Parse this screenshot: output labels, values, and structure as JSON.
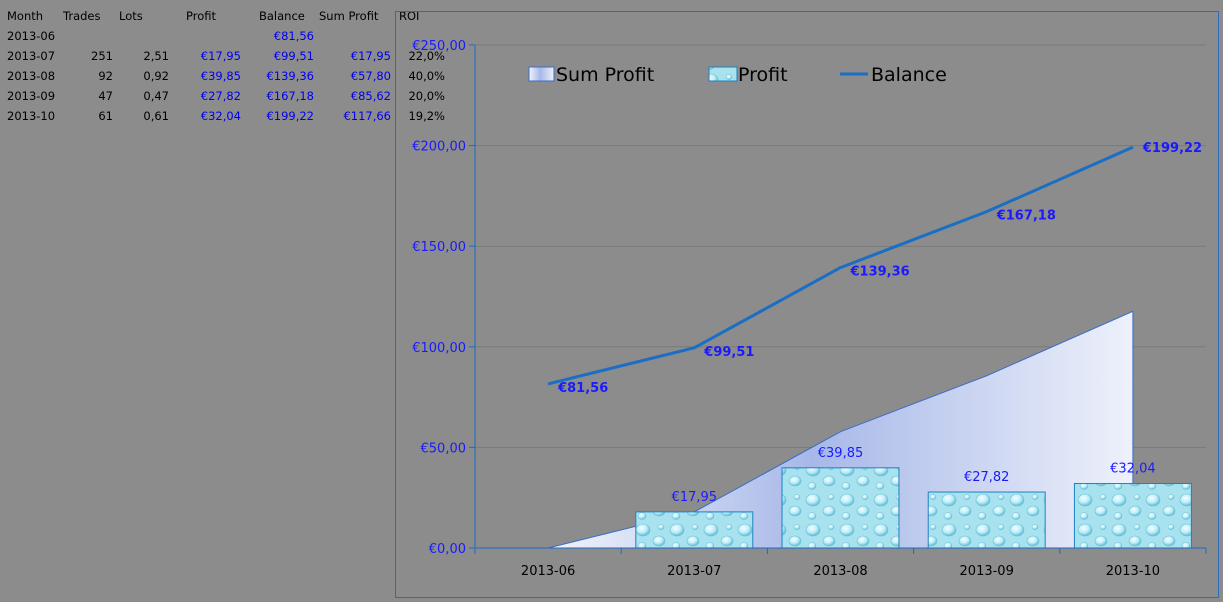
{
  "table": {
    "headers": [
      "Month",
      "Trades",
      "Lots",
      "Profit",
      "Balance",
      "Sum Profit",
      "ROI"
    ],
    "rows": [
      {
        "month": "2013-06",
        "trades": "",
        "lots": "",
        "profit": "",
        "balance": "€81,56",
        "sum_profit": "",
        "roi": ""
      },
      {
        "month": "2013-07",
        "trades": "251",
        "lots": "2,51",
        "profit": "€17,95",
        "balance": "€99,51",
        "sum_profit": "€17,95",
        "roi": "22,0%"
      },
      {
        "month": "2013-08",
        "trades": "92",
        "lots": "0,92",
        "profit": "€39,85",
        "balance": "€139,36",
        "sum_profit": "€57,80",
        "roi": "40,0%"
      },
      {
        "month": "2013-09",
        "trades": "47",
        "lots": "0,47",
        "profit": "€27,82",
        "balance": "€167,18",
        "sum_profit": "€85,62",
        "roi": "20,0%"
      },
      {
        "month": "2013-10",
        "trades": "61",
        "lots": "0,61",
        "profit": "€32,04",
        "balance": "€199,22",
        "sum_profit": "€117,66",
        "roi": "19,2%"
      }
    ]
  },
  "chart_data": {
    "type": "bar",
    "categories": [
      "2013-06",
      "2013-07",
      "2013-08",
      "2013-09",
      "2013-10"
    ],
    "ylim": [
      0,
      250
    ],
    "yticks": [
      0,
      50,
      100,
      150,
      200,
      250
    ],
    "ytick_labels": [
      "€0,00",
      "€50,00",
      "€100,00",
      "€150,00",
      "€200,00",
      "€250,00"
    ],
    "grid": true,
    "legend_position": "top",
    "series": [
      {
        "name": "Sum Profit",
        "kind": "area",
        "values": [
          0,
          17.95,
          57.8,
          85.62,
          117.66
        ],
        "labels": []
      },
      {
        "name": "Profit",
        "kind": "bar",
        "values": [
          null,
          17.95,
          39.85,
          27.82,
          32.04
        ],
        "labels": [
          "",
          "€17,95",
          "€39,85",
          "€27,82",
          "€32,04"
        ]
      },
      {
        "name": "Balance",
        "kind": "line",
        "values": [
          81.56,
          99.51,
          139.36,
          167.18,
          199.22
        ],
        "labels": [
          "€81,56",
          "€99,51",
          "€139,36",
          "€167,18",
          "€199,22"
        ]
      }
    ],
    "colors": {
      "line": "#1a6ec4",
      "bar_fill": "#a8e4f0",
      "bar_stroke": "#2080c0",
      "area_light": "#f2f4fc",
      "area_dark": "#a7b8e8",
      "axis": "#1a6ec4",
      "grid": "#7a7a7a"
    }
  }
}
